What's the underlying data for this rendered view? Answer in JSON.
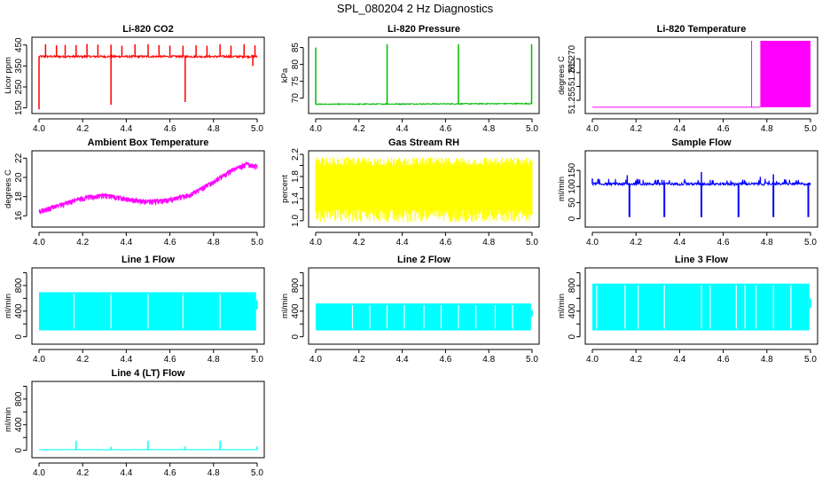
{
  "figure_title": "SPL_080204  2 Hz Diagnostics",
  "chart_data": [
    {
      "type": "line",
      "title": "Li-820 CO2",
      "ylabel": "Licor ppm",
      "xlim": [
        4.0,
        5.0
      ],
      "ylim": [
        140,
        470
      ],
      "xticks": [
        4.0,
        4.2,
        4.4,
        4.6,
        4.8,
        5.0
      ],
      "xtick_labels": [
        "4.0",
        "4.2",
        "4.4",
        "4.6",
        "4.8",
        "5.0"
      ],
      "yticks": [
        150,
        250,
        350,
        450
      ],
      "ytick_labels": [
        "150",
        "250",
        "350",
        "450"
      ],
      "color": "#ff0000",
      "series": [
        {
          "name": "CO2",
          "baseline": 395,
          "noise": 5,
          "spikes_up_to": 455,
          "spike_x": [
            4.03,
            4.08,
            4.12,
            4.17,
            4.22,
            4.27,
            4.33,
            4.38,
            4.44,
            4.5,
            4.55,
            4.6,
            4.66,
            4.72,
            4.77,
            4.83,
            4.88,
            4.94,
            4.99
          ],
          "spike_down": [
            {
              "x": 4.0,
              "y": 143
            },
            {
              "x": 4.33,
              "y": 165
            },
            {
              "x": 4.67,
              "y": 178
            },
            {
              "x": 4.98,
              "y": 350
            }
          ]
        }
      ]
    },
    {
      "type": "line",
      "title": "Li-820 Pressure",
      "ylabel": "kPa",
      "xlim": [
        4.0,
        5.0
      ],
      "ylim": [
        66.5,
        87
      ],
      "xticks": [
        4.0,
        4.2,
        4.4,
        4.6,
        4.8,
        5.0
      ],
      "xtick_labels": [
        "4.0",
        "4.2",
        "4.4",
        "4.6",
        "4.8",
        "5.0"
      ],
      "yticks": [
        70,
        75,
        80,
        85
      ],
      "ytick_labels": [
        "70",
        "75",
        "80",
        "85"
      ],
      "color": "#00bb00",
      "series": [
        {
          "name": "Pressure",
          "baseline": 68.2,
          "noise": 0.15,
          "spikes": [
            {
              "x": 4.0,
              "y": 85
            },
            {
              "x": 4.33,
              "y": 86
            },
            {
              "x": 4.66,
              "y": 86
            },
            {
              "x": 4.998,
              "y": 86
            }
          ]
        }
      ]
    },
    {
      "type": "line",
      "title": "Li-820 Temperature",
      "ylabel": "degrees C",
      "xlim": [
        4.0,
        5.0
      ],
      "ylim": [
        51.2515,
        51.2765
      ],
      "xticks": [
        4.0,
        4.2,
        4.4,
        4.6,
        4.8,
        5.0
      ],
      "xtick_labels": [
        "4.0",
        "4.2",
        "4.4",
        "4.6",
        "4.8",
        "5.0"
      ],
      "yticks": [
        51.255,
        51.26,
        51.265,
        51.27
      ],
      "ytick_labels": [
        "51.255",
        "51.265",
        "51.270"
      ],
      "color": "#ff00ff",
      "series": [
        {
          "name": "Temperature",
          "baseline": 51.2525,
          "switch_x": 4.73,
          "high": 51.2765,
          "band_from": 4.77
        }
      ]
    },
    {
      "type": "line",
      "title": "Ambient Box Temperature",
      "ylabel": "degrees C",
      "xlim": [
        4.0,
        5.0
      ],
      "ylim": [
        15.2,
        22.4
      ],
      "xticks": [
        4.0,
        4.2,
        4.4,
        4.6,
        4.8,
        5.0
      ],
      "xtick_labels": [
        "4.0",
        "4.2",
        "4.4",
        "4.6",
        "4.8",
        "5.0"
      ],
      "yticks": [
        16,
        18,
        20,
        22
      ],
      "ytick_labels": [
        "16",
        "18",
        "20",
        "22"
      ],
      "color": "#ff00ff",
      "series": [
        {
          "name": "Ambient",
          "x": [
            4.0,
            4.1,
            4.2,
            4.3,
            4.4,
            4.5,
            4.6,
            4.7,
            4.8,
            4.9,
            4.95,
            5.0
          ],
          "y": [
            16.5,
            17.2,
            17.9,
            18.2,
            17.8,
            17.5,
            17.7,
            18.3,
            19.6,
            21.0,
            21.4,
            21.2
          ],
          "noise": 0.4
        }
      ]
    },
    {
      "type": "line",
      "title": "Gas Stream RH",
      "ylabel": "percent",
      "xlim": [
        4.0,
        5.0
      ],
      "ylim": [
        0.95,
        2.2
      ],
      "xticks": [
        4.0,
        4.2,
        4.4,
        4.6,
        4.8,
        5.0
      ],
      "xtick_labels": [
        "4.0",
        "4.2",
        "4.4",
        "4.6",
        "4.8",
        "5.0"
      ],
      "yticks": [
        1.0,
        1.2,
        1.4,
        1.6,
        1.8,
        2.0,
        2.2
      ],
      "ytick_labels": [
        "1.0",
        "1.4",
        "1.8",
        "2.2"
      ],
      "color": "#ffff00",
      "series": [
        {
          "name": "RH",
          "band_low": 1.2,
          "band_high": 2.0,
          "extreme_low": 0.97,
          "extreme_high": 2.15
        }
      ]
    },
    {
      "type": "line",
      "title": "Sample Flow",
      "ylabel": "ml/min",
      "xlim": [
        4.0,
        5.0
      ],
      "ylim": [
        -15,
        200
      ],
      "xticks": [
        4.0,
        4.2,
        4.4,
        4.6,
        4.8,
        5.0
      ],
      "xtick_labels": [
        "4.0",
        "4.2",
        "4.4",
        "4.6",
        "4.8",
        "5.0"
      ],
      "yticks": [
        0,
        50,
        100,
        150
      ],
      "ytick_labels": [
        "0",
        "50",
        "100",
        "150"
      ],
      "color": "#0000ff",
      "series": [
        {
          "name": "Sample",
          "baseline": 108,
          "noise": 4,
          "drops_x": [
            4.17,
            4.33,
            4.5,
            4.67,
            4.83,
            4.99
          ],
          "drop_y": 5,
          "peaks": [
            {
              "x": 4.0,
              "y": 125
            },
            {
              "x": 4.16,
              "y": 135
            },
            {
              "x": 4.5,
              "y": 145
            },
            {
              "x": 4.77,
              "y": 130
            },
            {
              "x": 4.83,
              "y": 138
            }
          ]
        }
      ]
    },
    {
      "type": "area",
      "title": "Line 1 Flow",
      "ylabel": "ml/min",
      "xlim": [
        4.0,
        5.0
      ],
      "ylim": [
        -60,
        1020
      ],
      "xticks": [
        4.0,
        4.2,
        4.4,
        4.6,
        4.8,
        5.0
      ],
      "xtick_labels": [
        "4.0",
        "4.2",
        "4.4",
        "4.6",
        "4.8",
        "5.0"
      ],
      "yticks": [
        0,
        200,
        400,
        600,
        800,
        1000
      ],
      "ytick_labels": [
        "0",
        "400",
        "800"
      ],
      "color": "#00ffff",
      "series": [
        {
          "name": "Line 1",
          "low": 100,
          "high": 695,
          "gaps_x": [
            4.16,
            4.33,
            4.5,
            4.66,
            4.83
          ],
          "end_x": 4.995,
          "end_value": 570
        }
      ]
    },
    {
      "type": "area",
      "title": "Line 2 Flow",
      "ylabel": "ml/min",
      "xlim": [
        4.0,
        5.0
      ],
      "ylim": [
        -60,
        1020
      ],
      "xticks": [
        4.0,
        4.2,
        4.4,
        4.6,
        4.8,
        5.0
      ],
      "xtick_labels": [
        "4.0",
        "4.2",
        "4.4",
        "4.6",
        "4.8",
        "5.0"
      ],
      "yticks": [
        0,
        200,
        400,
        600,
        800,
        1000
      ],
      "ytick_labels": [
        "0",
        "400",
        "800"
      ],
      "color": "#00ffff",
      "series": [
        {
          "name": "Line 2",
          "low": 100,
          "high": 520,
          "gaps_x": [
            4.17,
            4.25,
            4.33,
            4.41,
            4.5,
            4.58,
            4.66,
            4.74,
            4.83,
            4.91
          ],
          "end_x": 4.995,
          "end_value": 420
        }
      ]
    },
    {
      "type": "area",
      "title": "Line 3 Flow",
      "ylabel": "ml/min",
      "xlim": [
        4.0,
        5.0
      ],
      "ylim": [
        -60,
        1020
      ],
      "xticks": [
        4.0,
        4.2,
        4.4,
        4.6,
        4.8,
        5.0
      ],
      "xtick_labels": [
        "4.0",
        "4.2",
        "4.4",
        "4.6",
        "4.8",
        "5.0"
      ],
      "yticks": [
        0,
        200,
        400,
        600,
        800,
        1000
      ],
      "ytick_labels": [
        "0",
        "400",
        "800"
      ],
      "color": "#00ffff",
      "series": [
        {
          "name": "Line 3",
          "low": 100,
          "high": 830,
          "gaps_x": [
            4.02,
            4.15,
            4.21,
            4.33,
            4.5,
            4.54,
            4.66,
            4.7,
            4.75,
            4.83,
            4.91
          ],
          "end_x": 4.995,
          "end_value": 600
        }
      ]
    },
    {
      "type": "line",
      "title": "Line 4 (LT) Flow",
      "ylabel": "ml/min",
      "xlim": [
        4.0,
        5.0
      ],
      "ylim": [
        -60,
        1020
      ],
      "xticks": [
        4.0,
        4.2,
        4.4,
        4.6,
        4.8,
        5.0
      ],
      "xtick_labels": [
        "4.0",
        "4.2",
        "4.4",
        "4.6",
        "4.8",
        "5.0"
      ],
      "yticks": [
        0,
        200,
        400,
        600,
        800,
        1000
      ],
      "ytick_labels": [
        "0",
        "400",
        "800"
      ],
      "color": "#00ffff",
      "series": [
        {
          "name": "Line 4",
          "baseline": 10,
          "noise": 3,
          "spikes": [
            {
              "x": 4.17,
              "y": 150
            },
            {
              "x": 4.33,
              "y": 55
            },
            {
              "x": 4.5,
              "y": 150
            },
            {
              "x": 4.67,
              "y": 60
            },
            {
              "x": 4.83,
              "y": 150
            },
            {
              "x": 5.0,
              "y": 60
            }
          ]
        }
      ]
    }
  ]
}
